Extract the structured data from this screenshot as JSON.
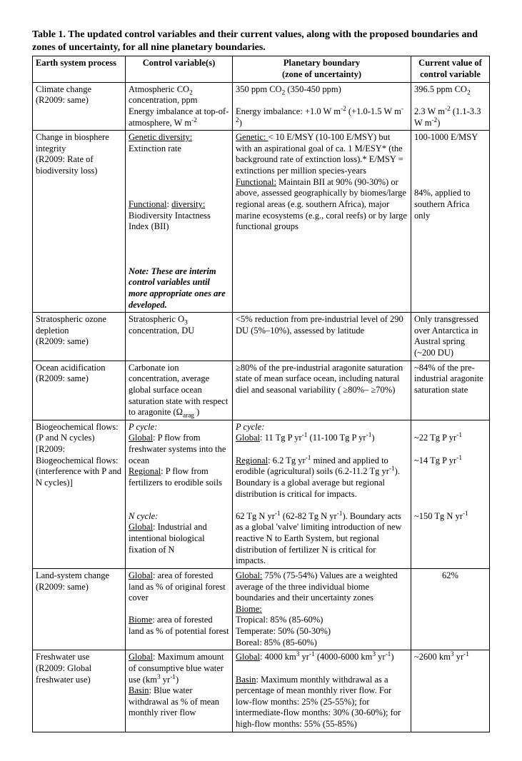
{
  "title": "Table 1. The updated control variables and their current values, along with the proposed boundaries and zones of uncertainty, for all nine planetary boundaries.",
  "headers": {
    "c1": "Earth system process",
    "c2": "Control variable(s)",
    "c3_l1": "Planetary boundary",
    "c3_l2": "(zone of uncertainty)",
    "c4_l1": "Current value of",
    "c4_l2": "control variable"
  },
  "rows": {
    "climate": {
      "process_l1": "Climate change",
      "process_l2": "(R2009: same)",
      "cv_l1": "Atmospheric CO",
      "cv_l2": "concentration, ppm",
      "cv_l3": "Energy imbalance at top-of-atmosphere, W m",
      "pb_l1": "350 ppm CO",
      "pb_l1b": " (350-450 ppm)",
      "pb_l2a": "Energy imbalance: +1.0 W m",
      "pb_l2b": " (+1.0-1.5 W m",
      "pb_l2c": ")",
      "cur_l1a": "396.5 ppm CO",
      "cur_l2a": "2.3 W m",
      "cur_l2b": " (1.1-3.3 W m",
      "cur_l2c": ")"
    },
    "biosphere": {
      "process_l1": "Change in biosphere integrity",
      "process_l2": "(R2009: Rate of biodiversity loss)",
      "cv_gen_u": "Genetic diversity:",
      "cv_gen": " Extinction rate",
      "cv_fun_u": "Functional",
      "cv_fun_mid": ": ",
      "cv_fun_u2": "diversity:",
      "cv_fun": " Biodiversity Intactness Index (BII)",
      "cv_note": "Note: These are interim control variables until more appropriate ones are developed.",
      "pb_gen_u": "Genetic: ",
      "pb_gen": "< 10 E/MSY (10-100 E/MSY) but with an aspirational goal of ca. 1 M/ESY* (the background rate of extinction loss).* E/MSY = extinctions per million species-years",
      "pb_fun_u": "Functional:",
      "pb_fun": " Maintain BII at 90% (90-30%) or above, assessed geographically by biomes/large regional areas (e.g. southern Africa), major marine ecosystems (e.g., coral reefs) or by large functional groups",
      "cur_gen": "100-1000 E/MSY",
      "cur_fun": "84%, applied to southern Africa only"
    },
    "ozone": {
      "process_l1": "Stratospheric ozone depletion",
      "process_l2": "(R2009: same)",
      "cv_l1": "Stratospheric O",
      "cv_l2": " concentration, DU",
      "pb": "<5% reduction from pre-industrial level of 290 DU (5%–10%), assessed by latitude",
      "cur": "Only transgressed over Antarctica in Austral spring (~200 DU)"
    },
    "ocean": {
      "process_l1": "Ocean acidification",
      "process_l2": "(R2009: same)",
      "cv": "Carbonate ion concentration, average global surface ocean saturation state with respect to aragonite (Ω",
      "cv_sub": "arag",
      "cv_end": " )",
      "pb": "≥80% of the pre-industrial aragonite saturation state of mean surface ocean, including natural diel and seasonal variability ( ≥80%– ≥70%)",
      "cur": "~84% of the pre-industrial aragonite saturation state"
    },
    "biogeo": {
      "process": "Biogeochemical flows: (P and N cycles) [R2009: Biogeochemical flows: (interference with P and N cycles)]",
      "cv_p_title": "P cycle:",
      "cv_p_glob_u": "Global",
      "cv_p_glob": ": P flow from freshwater systems into the ocean",
      "cv_p_reg_u": "Regional",
      "cv_p_reg": ": P flow from fertilizers to erodible soils",
      "cv_n_title": "N cycle:",
      "cv_n_glob_u": "Global",
      "cv_n_glob": ": Industrial and intentional biological fixation of N",
      "pb_p_title": "P cycle:",
      "pb_p_glob_u": "Global",
      "pb_p_glob_a": ": 11 Tg P yr",
      "pb_p_glob_b": " (11-100 Tg P yr",
      "pb_p_glob_c": ")",
      "pb_p_reg_u": "Regional",
      "pb_p_reg_a": ": 6.2 Tg yr",
      "pb_p_reg_b": " mined and applied to erodible (agricultural) soils (6.2-11.2 Tg yr",
      "pb_p_reg_c": "). Boundary is a global average but regional distribution is critical for impacts.",
      "pb_n_a": "62 Tg N yr",
      "pb_n_b": " (62-82 Tg N yr",
      "pb_n_c": "). Boundary acts as a global 'valve' limiting introduction of new reactive N to Earth System, but regional distribution of fertilizer N is critical for impacts.",
      "cur_p_glob": "~22 Tg P yr",
      "cur_p_reg": "~14 Tg P yr",
      "cur_n": "~150 Tg N yr"
    },
    "land": {
      "process_l1": "Land-system change",
      "process_l2": "(R2009: same)",
      "cv_glob_u": "Global",
      "cv_glob": ": area of forested land as % of original forest cover",
      "cv_biome_u": "Biome",
      "cv_biome": ": area of forested land as % of potential forest",
      "pb_glob_u": "Global:",
      "pb_glob": " 75% (75-54%) Values are a weighted average of the three individual biome boundaries and their uncertainty zones",
      "pb_biome_u": "Biome:",
      "pb_trop": "Tropical: 85% (85-60%)",
      "pb_temp": "Temperate: 50% (50-30%)",
      "pb_bor": "Boreal: 85% (85-60%)",
      "cur": "62%"
    },
    "water": {
      "process_l1": "Freshwater use",
      "process_l2": "(R2009: Global freshwater use)",
      "cv_glob_u": "Global",
      "cv_glob_a": ": Maximum amount of consumptive blue water use (km",
      "cv_glob_b": " yr",
      "cv_glob_c": ")",
      "cv_basin_u": "Basin",
      "cv_basin": ": Blue water withdrawal as % of mean monthly river flow",
      "pb_glob_u": "Global",
      "pb_glob_a": ": 4000 km",
      "pb_glob_b": " yr",
      "pb_glob_c": " (4000-6000 km",
      "pb_glob_d": " yr",
      "pb_glob_e": ")",
      "pb_basin_u": "Basin",
      "pb_basin": ": Maximum monthly withdrawal as a percentage of mean monthly river flow. For low-flow months: 25% (25-55%); for intermediate-flow months: 30% (30-60%); for high-flow months: 55% (55-85%)",
      "cur_a": "~2600 km",
      "cur_b": " yr"
    }
  }
}
